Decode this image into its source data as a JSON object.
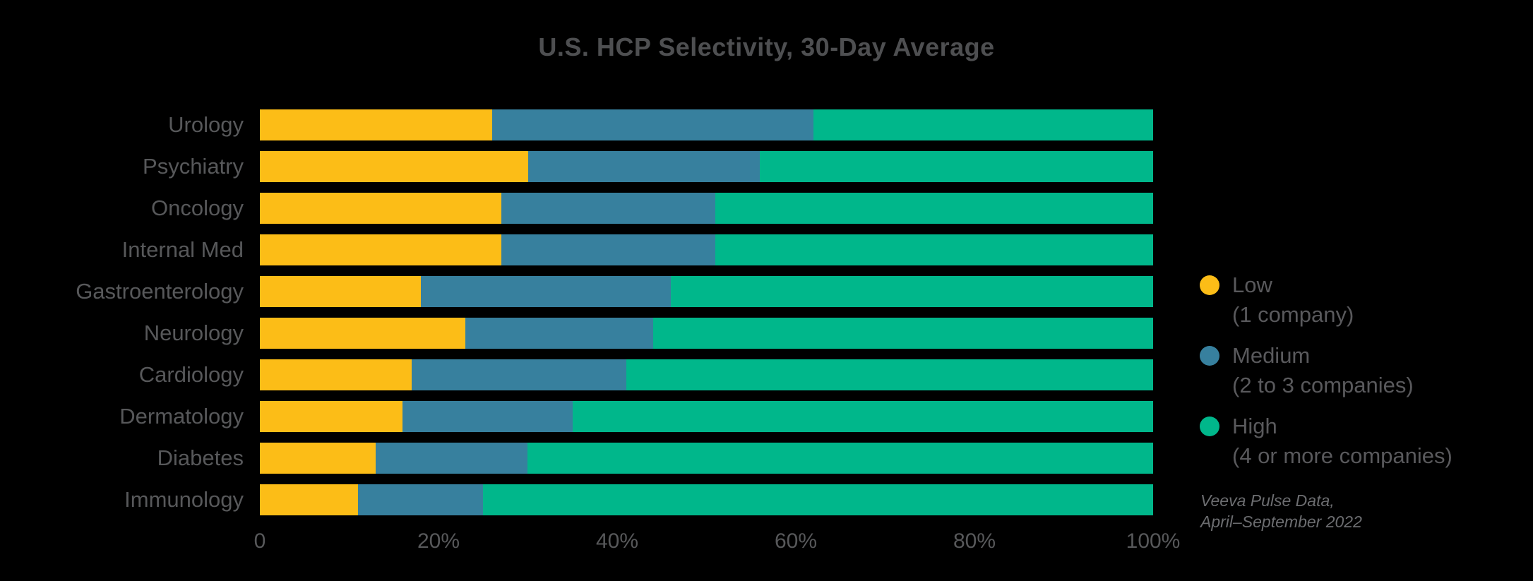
{
  "chart_data": {
    "type": "bar",
    "stacked": true,
    "orientation": "horizontal",
    "title": "U.S. HCP Selectivity, 30-Day Average",
    "categories": [
      "Urology",
      "Psychiatry",
      "Oncology",
      "Internal Med",
      "Gastroenterology",
      "Neurology",
      "Cardiology",
      "Dermatology",
      "Diabetes",
      "Immunology"
    ],
    "series": [
      {
        "name": "Low",
        "sublabel": "(1 company)",
        "color": "#FCBD17",
        "values": [
          26,
          30,
          27,
          27,
          18,
          23,
          17,
          16,
          13,
          11
        ]
      },
      {
        "name": "Medium",
        "sublabel": "(2 to 3 companies)",
        "color": "#37809E",
        "values": [
          36,
          26,
          24,
          24,
          28,
          21,
          24,
          19,
          17,
          14
        ]
      },
      {
        "name": "High",
        "sublabel": "(4 or more companies)",
        "color": "#00B78B",
        "values": [
          38,
          44,
          49,
          49,
          54,
          56,
          59,
          65,
          70,
          75
        ]
      }
    ],
    "x_ticks": [
      "0",
      "20%",
      "40%",
      "60%",
      "80%",
      "100%"
    ],
    "xlim": [
      0,
      100
    ],
    "grid": false,
    "legend_position": "right",
    "units": "percent",
    "source": [
      "Veeva Pulse Data,",
      "April–September 2022"
    ]
  },
  "colors": {
    "background": "#000000",
    "title_text": "#4E4F51",
    "label_text": "#57585A",
    "legend_text": "#59595C",
    "source_text": "#6C6D70",
    "low": "#FCBD17",
    "medium": "#37809E",
    "high": "#00B78B"
  }
}
